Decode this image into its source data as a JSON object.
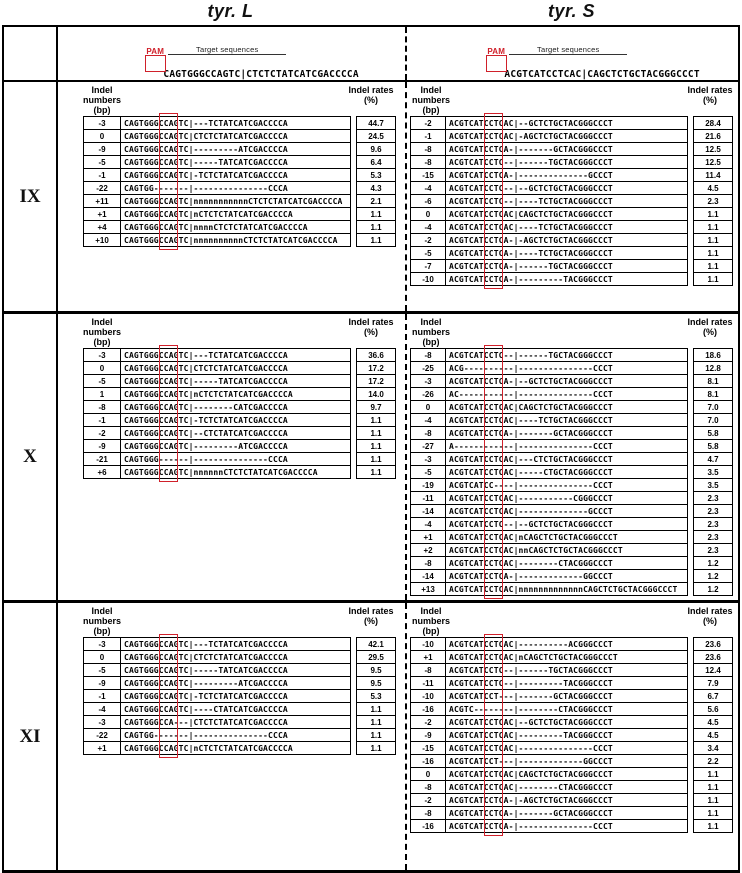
{
  "figure": {
    "pam_color": "#d0202a",
    "columns": [
      {
        "title": "tyr. L",
        "pam_label": "PAM",
        "target_label": "Target sequences",
        "reference": "CAGTGGGCCAGTC|CTCTCTATCATCGACCCCA"
      },
      {
        "title": "tyr. S",
        "pam_label": "PAM",
        "target_label": "Target sequences",
        "reference": "ACGTCATCCTCAC|CAGCTCTGCTACGGGCCCT"
      }
    ],
    "header_labels": {
      "indel_numbers_label": "Indel numbers",
      "bp_label": "(bp)",
      "indel_rates_label": "Indel rates",
      "pct_label": "(%)"
    },
    "sections": [
      {
        "label": "IX",
        "tables": [
          {
            "rows": [
              [
                "-3",
                "CAGTGGGCCAGTC|---TCTATCATCGACCCCA",
                "44.7"
              ],
              [
                "0",
                "CAGTGGGCCAGTC|CTCTCTATCATCGACCCCA",
                "24.5"
              ],
              [
                "-9",
                "CAGTGGGCCAGTC|---------ATCGACCCCA",
                "9.6"
              ],
              [
                "-5",
                "CAGTGGGCCAGTC|-----TATCATCGACCCCA",
                "6.4"
              ],
              [
                "-1",
                "CAGTGGGCCAGTC|-TCTCTATCATCGACCCCA",
                "5.3"
              ],
              [
                "-22",
                "CAGTGG-------|---------------CCCA",
                "4.3"
              ],
              [
                "+11",
                "CAGTGGGCCAGTC|nnnnnnnnnnnCTCTCTATCATCGACCCCA",
                "2.1"
              ],
              [
                "+1",
                "CAGTGGGCCAGTC|nCTCTCTATCATCGACCCCA",
                "1.1"
              ],
              [
                "+4",
                "CAGTGGGCCAGTC|nnnnCTCTCTATCATCGACCCCA",
                "1.1"
              ],
              [
                "+10",
                "CAGTGGGCCAGTC|nnnnnnnnnnCTCTCTATCATCGACCCCA",
                "1.1"
              ]
            ]
          },
          {
            "rows": [
              [
                "-2",
                "ACGTCATCCTCAC|--GCTCTGCTACGGGCCCT",
                "28.4"
              ],
              [
                "-1",
                "ACGTCATCCTCAC|-AGCTCTGCTACGGGCCCT",
                "21.6"
              ],
              [
                "-8",
                "ACGTCATCCTCA-|-------GCTACGGGCCCT",
                "12.5"
              ],
              [
                "-8",
                "ACGTCATCCTC--|------TGCTACGGGCCCT",
                "12.5"
              ],
              [
                "-15",
                "ACGTCATCCTCA-|--------------GCCCT",
                "11.4"
              ],
              [
                "-4",
                "ACGTCATCCTC--|--GCTCTGCTACGGGCCCT",
                "4.5"
              ],
              [
                "-6",
                "ACGTCATCCTC--|----TCTGCTACGGGCCCT",
                "2.3"
              ],
              [
                "0",
                "ACGTCATCCTCAC|CAGCTCTGCTACGGGCCCT",
                "1.1"
              ],
              [
                "-4",
                "ACGTCATCCTCAC|----TCTGCTACGGGCCCT",
                "1.1"
              ],
              [
                "-2",
                "ACGTCATCCTCA-|-AGCTCTGCTACGGGCCCT",
                "1.1"
              ],
              [
                "-5",
                "ACGTCATCCTCA-|----TCTGCTACGGGCCCT",
                "1.1"
              ],
              [
                "-7",
                "ACGTCATCCTCA-|------TGCTACGGGCCCT",
                "1.1"
              ],
              [
                "-10",
                "ACGTCATCCTCA-|---------TACGGGCCCT",
                "1.1"
              ]
            ]
          }
        ]
      },
      {
        "label": "X",
        "tables": [
          {
            "rows": [
              [
                "-3",
                "CAGTGGGCCAGTC|---TCTATCATCGACCCCA",
                "36.6"
              ],
              [
                "0",
                "CAGTGGGCCAGTC|CTCTCTATCATCGACCCCA",
                "17.2"
              ],
              [
                "-5",
                "CAGTGGGCCAGTC|-----TATCATCGACCCCA",
                "17.2"
              ],
              [
                "1",
                "CAGTGGGCCAGTC|nCTCTCTATCATCGACCCCA",
                "14.0"
              ],
              [
                "-8",
                "CAGTGGGCCAGTC|--------CATCGACCCCA",
                "9.7"
              ],
              [
                "-1",
                "CAGTGGGCCAGTC|-TCTCTATCATCGACCCCA",
                "1.1"
              ],
              [
                "-2",
                "CAGTGGGCCAGTC|--CTCTATCATCGACCCCA",
                "1.1"
              ],
              [
                "-9",
                "CAGTGGGCCAGTC|---------ATCGACCCCA",
                "1.1"
              ],
              [
                "-21",
                "CAGTGGG------|---------------CCCA",
                "1.1"
              ],
              [
                "+6",
                "CAGTGGGCCAGTC|nnnnnnCTCTCTATCATCGACCCCA",
                "1.1"
              ]
            ]
          },
          {
            "rows": [
              [
                "-8",
                "ACGTCATCCTC--|------TGCTACGGGCCCT",
                "18.6"
              ],
              [
                "-25",
                "ACG----------|---------------CCCT",
                "12.8"
              ],
              [
                "-3",
                "ACGTCATCCTCA-|--GCTCTGCTACGGGCCCT",
                "8.1"
              ],
              [
                "-26",
                "AC-----------|---------------CCCT",
                "8.1"
              ],
              [
                "0",
                "ACGTCATCCTCAC|CAGCTCTGCTACGGGCCCT",
                "7.0"
              ],
              [
                "-4",
                "ACGTCATCCTCAC|----TCTGCTACGGGCCCT",
                "7.0"
              ],
              [
                "-8",
                "ACGTCATCCTCA-|-------GCTACGGGCCCT",
                "5.8"
              ],
              [
                "-27",
                "A------------|---------------CCCT",
                "5.8"
              ],
              [
                "-3",
                "ACGTCATCCTCAC|---CTCTGCTACGGGCCCT",
                "4.7"
              ],
              [
                "-5",
                "ACGTCATCCTCAC|-----CTGCTACGGGCCCT",
                "3.5"
              ],
              [
                "-19",
                "ACGTCATCC----|---------------CCCT",
                "3.5"
              ],
              [
                "-11",
                "ACGTCATCCTCAC|-----------CGGGCCCT",
                "2.3"
              ],
              [
                "-14",
                "ACGTCATCCTCAC|--------------GCCCT",
                "2.3"
              ],
              [
                "-4",
                "ACGTCATCCTC--|--GCTCTGCTACGGGCCCT",
                "2.3"
              ],
              [
                "+1",
                "ACGTCATCCTCAC|nCAGCTCTGCTACGGGCCCT",
                "2.3"
              ],
              [
                "+2",
                "ACGTCATCCTCAC|nnCAGCTCTGCTACGGGCCCT",
                "2.3"
              ],
              [
                "-8",
                "ACGTCATCCTCAC|--------CTACGGGCCCT",
                "1.2"
              ],
              [
                "-14",
                "ACGTCATCCTCA-|-------------GGCCCT",
                "1.2"
              ],
              [
                "+13",
                "ACGTCATCCTCAC|nnnnnnnnnnnnnCAGCTCTGCTACGGGCCCT",
                "1.2"
              ]
            ]
          }
        ]
      },
      {
        "label": "XI",
        "tables": [
          {
            "rows": [
              [
                "-3",
                "CAGTGGGCCAGTC|---TCTATCATCGACCCCA",
                "42.1"
              ],
              [
                "0",
                "CAGTGGGCCAGTC|CTCTCTATCATCGACCCCA",
                "29.5"
              ],
              [
                "-5",
                "CAGTGGGCCAGTC|-----TATCATCGACCCCA",
                "9.5"
              ],
              [
                "-9",
                "CAGTGGGCCAGTC|---------ATCGACCCCA",
                "9.5"
              ],
              [
                "-1",
                "CAGTGGGCCAGTC|-TCTCTATCATCGACCCCA",
                "5.3"
              ],
              [
                "-4",
                "CAGTGGGCCAGTC|----CTATCATCGACCCCA",
                "1.1"
              ],
              [
                "-3",
                "CAGTGGGCCA---|CTCTCTATCATCGACCCCA",
                "1.1"
              ],
              [
                "-22",
                "CAGTGG-------|---------------CCCA",
                "1.1"
              ],
              [
                "+1",
                "CAGTGGGCCAGTC|nCTCTCTATCATCGACCCCA",
                "1.1"
              ]
            ]
          },
          {
            "rows": [
              [
                "-10",
                "ACGTCATCCTCAC|----------ACGGGCCCT",
                "23.6"
              ],
              [
                "+1",
                "ACGTCATCCTCAC|nCAGCTCTGCTACGGGCCCT",
                "23.6"
              ],
              [
                "-8",
                "ACGTCATCCTC--|------TGCTACGGGCCCT",
                "12.4"
              ],
              [
                "-11",
                "ACGTCATCCTC--|---------TACGGGCCCT",
                "7.9"
              ],
              [
                "-10",
                "ACGTCATCCT---|-------GCTACGGGCCCT",
                "6.7"
              ],
              [
                "-16",
                "ACGTC--------|--------CTACGGGCCCT",
                "5.6"
              ],
              [
                "-2",
                "ACGTCATCCTCAC|--GCTCTGCTACGGGCCCT",
                "4.5"
              ],
              [
                "-9",
                "ACGTCATCCTCAC|---------TACGGGCCCT",
                "4.5"
              ],
              [
                "-15",
                "ACGTCATCCTCAC|---------------CCCT",
                "3.4"
              ],
              [
                "-16",
                "ACGTCATCCT---|-------------GGCCCT",
                "2.2"
              ],
              [
                "0",
                "ACGTCATCCTCAC|CAGCTCTGCTACGGGCCCT",
                "1.1"
              ],
              [
                "-8",
                "ACGTCATCCTCAC|--------CTACGGGCCCT",
                "1.1"
              ],
              [
                "-2",
                "ACGTCATCCTCA-|-AGCTCTGCTACGGGCCCT",
                "1.1"
              ],
              [
                "-8",
                "ACGTCATCCTCA-|-------GCTACGGGCCCT",
                "1.1"
              ],
              [
                "-16",
                "ACGTCATCCTCA-|---------------CCCT",
                "1.1"
              ]
            ]
          }
        ]
      }
    ]
  }
}
